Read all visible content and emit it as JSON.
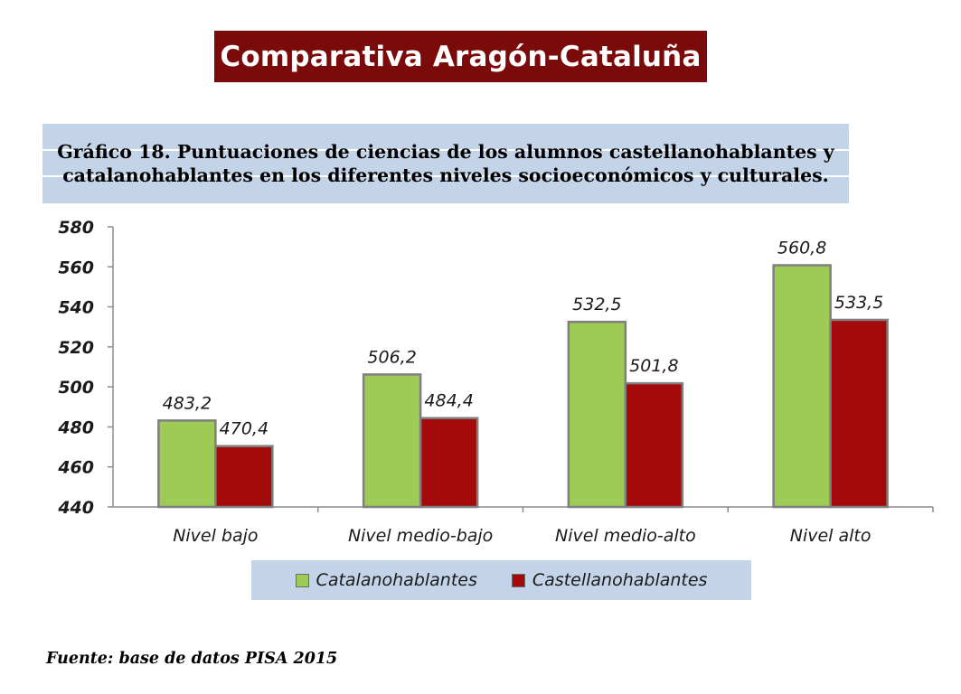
{
  "header": {
    "banner_title": "Comparativa Aragón-Cataluña",
    "chart_heading": "Gráfico 18. Puntuaciones de ciencias de los alumnos castellanohablantes y catalanohablantes en los diferentes niveles socioeconómicos y culturales."
  },
  "footer": {
    "source": "Fuente: base de datos PISA 2015"
  },
  "colors": {
    "banner": "#7b0a0a",
    "panel": "#c3d3e8",
    "catalan": "#9ecb55",
    "castilian": "#a50a0a"
  },
  "chart_data": {
    "type": "bar",
    "categories": [
      "Nivel bajo",
      "Nivel medio-bajo",
      "Nivel medio-alto",
      "Nivel alto"
    ],
    "series": [
      {
        "name": "Catalanohablantes",
        "values": [
          483.2,
          506.2,
          532.5,
          560.8
        ],
        "labels": [
          "483,2",
          "506,2",
          "532,5",
          "560,8"
        ],
        "color": "#9ecb55"
      },
      {
        "name": "Castellanohablantes",
        "values": [
          470.4,
          484.4,
          501.8,
          533.5
        ],
        "labels": [
          "470,4",
          "484,4",
          "501,8",
          "533,5"
        ],
        "color": "#a50a0a"
      }
    ],
    "ylim": [
      440,
      580
    ],
    "yticks": [
      440,
      460,
      480,
      500,
      520,
      540,
      560,
      580
    ],
    "grid": false,
    "legend_position": "bottom"
  }
}
